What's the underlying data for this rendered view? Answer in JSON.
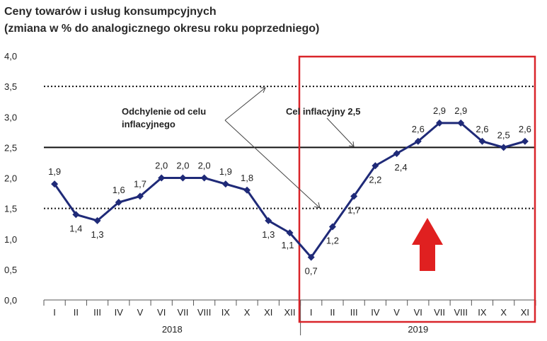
{
  "chart_data": {
    "type": "line",
    "title": "Ceny towarów i usług konsumpcyjnych",
    "subtitle": "(zmiana w % do analogicznego okresu roku poprzedniego)",
    "xlabel": "",
    "ylabel": "",
    "ylim": [
      0,
      4
    ],
    "yticks": [
      "0,0",
      "0,5",
      "1,0",
      "1,5",
      "2,0",
      "2,5",
      "3,0",
      "3,5",
      "4,0"
    ],
    "categories": [
      "I",
      "II",
      "III",
      "IV",
      "V",
      "VI",
      "VII",
      "VIII",
      "IX",
      "X",
      "XI",
      "XII",
      "I",
      "II",
      "III",
      "IV",
      "V",
      "VI",
      "VII",
      "VIII",
      "IX",
      "X",
      "XI"
    ],
    "years": [
      {
        "label": "2018",
        "from": 0,
        "to": 11
      },
      {
        "label": "2019",
        "from": 12,
        "to": 22
      }
    ],
    "series": [
      {
        "color": "#1f2a78",
        "values": [
          1.9,
          1.4,
          1.3,
          1.6,
          1.7,
          2.0,
          2.0,
          2.0,
          1.9,
          1.8,
          1.3,
          1.1,
          0.7,
          1.2,
          1.7,
          2.2,
          2.4,
          2.6,
          2.9,
          2.9,
          2.6,
          2.5,
          2.6
        ],
        "labels": [
          "1,9",
          "1,4",
          "1,3",
          "1,6",
          "1,7",
          "2,0",
          "2,0",
          "2,0",
          "1,9",
          "1,8",
          "1,3",
          "1,1",
          "0,7",
          "1,2",
          "1,7",
          "2,2",
          "2,4",
          "2,6",
          "2,9",
          "2,9",
          "2,6",
          "2,5",
          "2,6"
        ],
        "label_pos": [
          "above",
          "below",
          "below",
          "above",
          "above",
          "above",
          "above",
          "above",
          "above",
          "above",
          "below",
          "below",
          "below",
          "below",
          "below",
          "below",
          "below",
          "above",
          "above",
          "above",
          "above",
          "above",
          "above"
        ]
      }
    ],
    "reference_lines": [
      {
        "value": 2.5,
        "style": "solid"
      },
      {
        "value": 3.5,
        "style": "dotted"
      },
      {
        "value": 1.5,
        "style": "dotted"
      }
    ],
    "annotations": {
      "deviation_line1": "Odchylenie od celu",
      "deviation_line2": "inflacyjnego",
      "target": "Cel inflacyjny 2,5"
    },
    "highlight_box_color": "#d9252a",
    "arrow_color": "#e02020",
    "grid": false
  }
}
